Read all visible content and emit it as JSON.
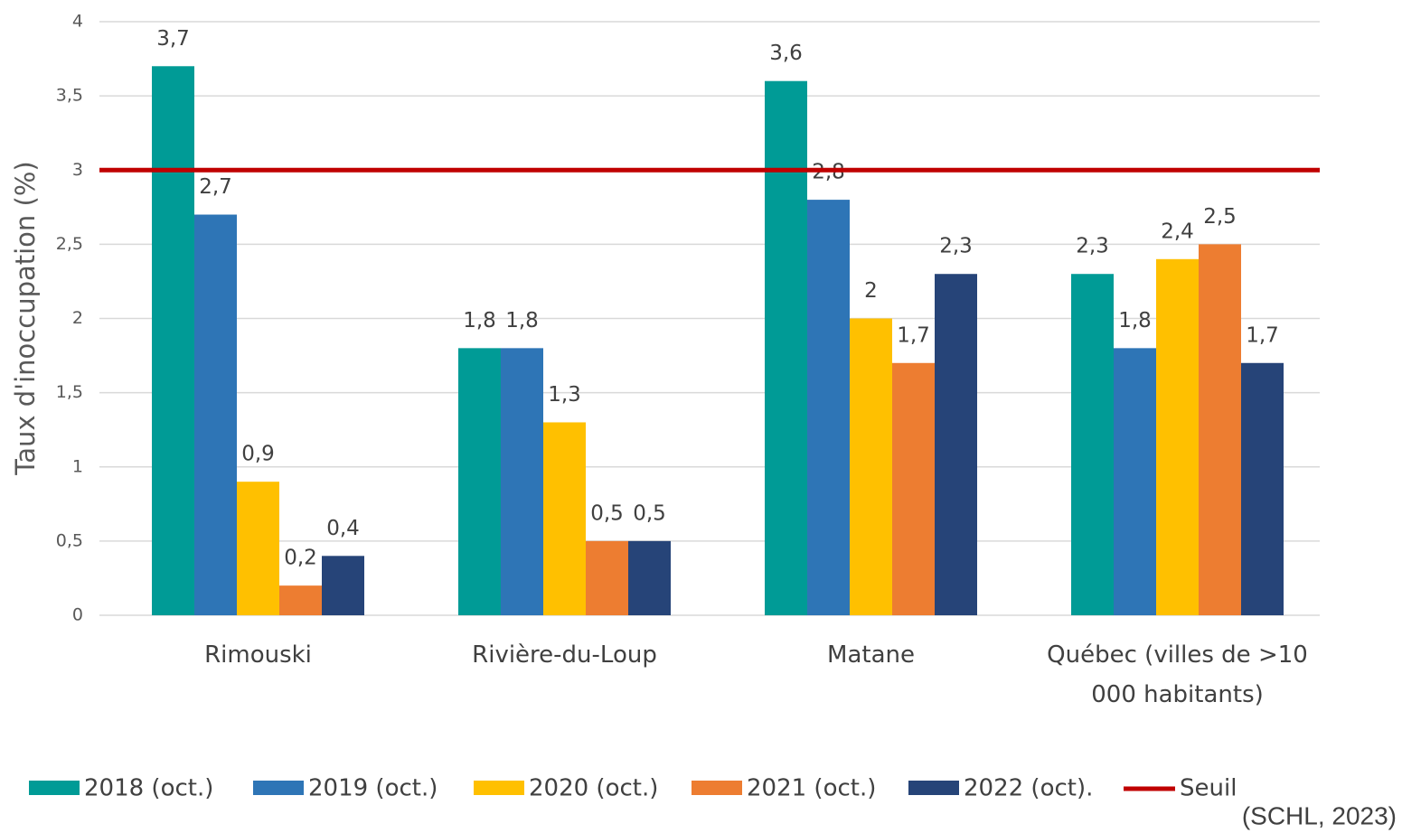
{
  "chart_data": {
    "type": "bar",
    "y_label": "Taux d'inoccupation (%)",
    "categories": [
      "Rimouski",
      "Rivière-du-Loup",
      "Matane",
      "Québec (villes de >10 000 habitants)"
    ],
    "series": [
      {
        "name": "2018 (oct.)",
        "color": "#009b96",
        "values": [
          3.7,
          1.8,
          3.6,
          2.3
        ],
        "value_labels": [
          "3,7",
          "1,8",
          "3,6",
          "2,3"
        ]
      },
      {
        "name": "2019 (oct.)",
        "color": "#2e75b6",
        "values": [
          2.7,
          1.8,
          2.8,
          1.8
        ],
        "value_labels": [
          "2,7",
          "1,8",
          "2,8",
          "1,8"
        ]
      },
      {
        "name": "2020 (oct.)",
        "color": "#ffc000",
        "values": [
          0.9,
          1.3,
          2,
          2.4
        ],
        "value_labels": [
          "0,9",
          "1,3",
          "2",
          "2,4"
        ]
      },
      {
        "name": "2021 (oct.)",
        "color": "#ed7d31",
        "values": [
          0.2,
          0.5,
          1.7,
          2.5
        ],
        "value_labels": [
          "0,2",
          "0,5",
          "1,7",
          "2,5"
        ]
      },
      {
        "name": "2022 (oct).",
        "color": "#264478",
        "values": [
          0.4,
          0.5,
          2.3,
          1.7
        ],
        "value_labels": [
          "0,4",
          "0,5",
          "2,3",
          "1,7"
        ]
      }
    ],
    "threshold": {
      "name": "Seuil",
      "value": 3,
      "color": "#c00000"
    },
    "ylim": [
      0,
      4
    ],
    "yticks": [
      0,
      {
        "value": 0.5,
        "label": "0,5"
      },
      1,
      {
        "value": 1.5,
        "label": "1,5"
      },
      2,
      {
        "value": 2.5,
        "label": "2,5"
      },
      3,
      {
        "value": 3.5,
        "label": "3,5"
      },
      4
    ],
    "grid": true,
    "legend": "bottom",
    "source": "(SCHL, 2023)"
  }
}
